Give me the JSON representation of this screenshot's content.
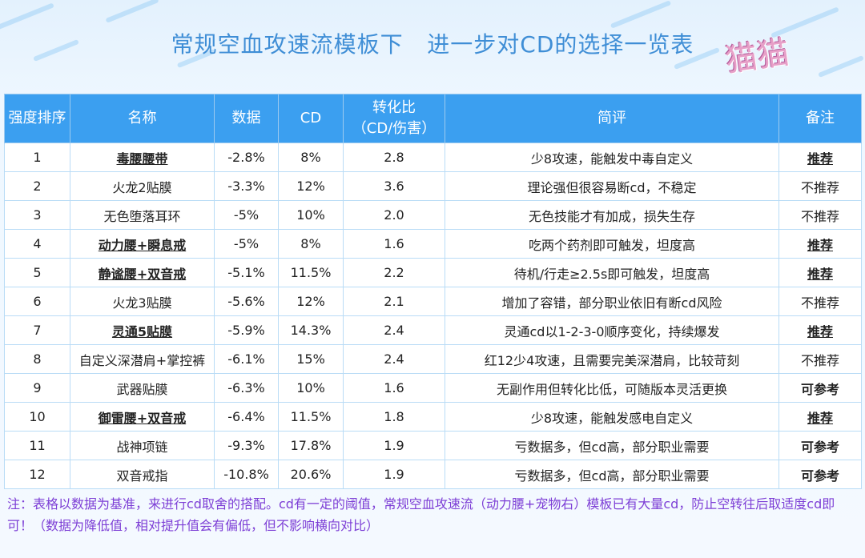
{
  "title": "常规空血攻速流模板下   进一步对CD的选择一览表",
  "stamp": "猫猫",
  "headers": {
    "rank": "强度排序",
    "name": "名称",
    "data": "数据",
    "cd": "CD",
    "ratio": "转化比\n（CD/伤害）",
    "comment": "简评",
    "note": "备注"
  },
  "rows": [
    {
      "rank": "1",
      "name": "毒腰腰带",
      "data": "-2.8%",
      "cd": "8%",
      "ratio": "2.8",
      "comment": "少8攻速，能触发中毒自定义",
      "note": "推荐"
    },
    {
      "rank": "2",
      "name": "火龙2贴膜",
      "data": "-3.3%",
      "cd": "12%",
      "ratio": "3.6",
      "comment": "理论强但很容易断cd，不稳定",
      "note": "不推荐"
    },
    {
      "rank": "3",
      "name": "无色堕落耳环",
      "data": "-5%",
      "cd": "10%",
      "ratio": "2.0",
      "comment": "无色技能才有加成，损失生存",
      "note": "不推荐"
    },
    {
      "rank": "4",
      "name": "动力腰+瞬息戒",
      "data": "-5%",
      "cd": "8%",
      "ratio": "1.6",
      "comment": "吃两个药剂即可触发，坦度高",
      "note": "推荐"
    },
    {
      "rank": "5",
      "name": "静谧腰+双音戒",
      "data": "-5.1%",
      "cd": "11.5%",
      "ratio": "2.2",
      "comment": "待机/行走≥2.5s即可触发，坦度高",
      "note": "推荐"
    },
    {
      "rank": "6",
      "name": "火龙3贴膜",
      "data": "-5.6%",
      "cd": "12%",
      "ratio": "2.1",
      "comment": "增加了容错，部分职业依旧有断cd风险",
      "note": "不推荐"
    },
    {
      "rank": "7",
      "name": "灵通5贴膜",
      "data": "-5.9%",
      "cd": "14.3%",
      "ratio": "2.4",
      "comment": "灵通cd以1-2-3-0顺序变化，持续爆发",
      "note": "推荐"
    },
    {
      "rank": "8",
      "name": "自定义深潜肩+掌控裤",
      "data": "-6.1%",
      "cd": "15%",
      "ratio": "2.4",
      "comment": "红12少4攻速，且需要完美深潜肩，比较苛刻",
      "note": "不推荐"
    },
    {
      "rank": "9",
      "name": "武器贴膜",
      "data": "-6.3%",
      "cd": "10%",
      "ratio": "1.6",
      "comment": "无副作用但转化比低，可随版本灵活更换",
      "note": "可参考"
    },
    {
      "rank": "10",
      "name": "御雷腰+双音戒",
      "data": "-6.4%",
      "cd": "11.5%",
      "ratio": "1.8",
      "comment": "少8攻速，能触发感电自定义",
      "note": "推荐"
    },
    {
      "rank": "11",
      "name": "战神项链",
      "data": "-9.3%",
      "cd": "17.8%",
      "ratio": "1.9",
      "comment": "亏数据多，但cd高，部分职业需要",
      "note": "可参考"
    },
    {
      "rank": "12",
      "name": "双音戒指",
      "data": "-10.8%",
      "cd": "20.6%",
      "ratio": "1.9",
      "comment": "亏数据多，但cd高，部分职业需要",
      "note": "可参考"
    }
  ],
  "footer": "注：表格以数据为基准，来进行cd取舍的搭配。cd有一定的阈值，常规空血攻速流（动力腰+宠物右）模板已有大量cd，防止空转往后取适度cd即可！（数据为降低值，相对提升值会有偏低，但不影响横向对比）",
  "colors": {
    "header_bg": "#3b9ff0",
    "title": "#3f8ed6",
    "recommend": "#d41f25",
    "footer": "#7d3fd6"
  }
}
